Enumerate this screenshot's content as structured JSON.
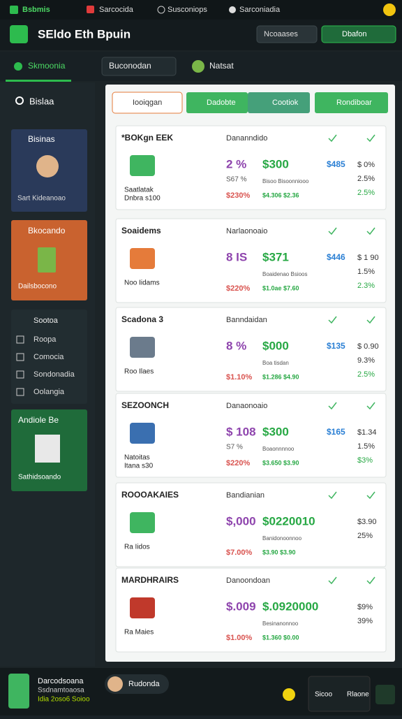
{
  "tabs": [
    "Bsbmis",
    "Sarcocida",
    "Susconiops",
    "Sarconiadia"
  ],
  "header": {
    "title": "SEldo Eth Bpuin",
    "button1": "Ncoaases",
    "button2": "Dbafon"
  },
  "nav": {
    "active": "Skmoonia",
    "dropdown": "Buconodan",
    "item": "Natsat"
  },
  "sidebar": {
    "search": "Bislaa",
    "card1": {
      "title": "Bisinas",
      "caption": "Sart Kideanoao"
    },
    "card2": {
      "title": "Bkocando",
      "caption": "Dailsbocono"
    },
    "menu_title": "Sootoa",
    "menu": [
      "Roopa",
      "Comocia",
      "Sondonadia",
      "Oolangia"
    ],
    "card3": {
      "title": "Andiole Be",
      "caption": "Sathidsoando"
    }
  },
  "toolbar": {
    "search": "Iooiqgan",
    "button1": "Dadobte",
    "button2": "Cootiok",
    "button3": "Rondiboar"
  },
  "cards": [
    {
      "title": "*BOKgn EEK",
      "header": "Dananndido",
      "caption": [
        "Saatlatak",
        "Dnbra s100"
      ],
      "a": "2 %",
      "b": "$300",
      "c": "S67 %",
      "d": "$230%",
      "e": "Bisoo Bisoonniooo",
      "f": "$4.306 $2.36",
      "g": "$485",
      "h": "$ 0%",
      "i": "2.5%",
      "j": "2.5%"
    },
    {
      "title": "Soaidems",
      "header": "Narlaonoaio",
      "caption": [
        "Noo Iidams"
      ],
      "a": "8 IS",
      "b": "$371",
      "d": "$220%",
      "e": "Boaidenao Bsioos",
      "f": "$1.0ae $7.60",
      "g": "$446",
      "h": "$ 1 90",
      "i": "1.5%",
      "j": "2.3%"
    },
    {
      "title": "Scadona 3",
      "header": "Banndaidan",
      "caption": [
        "Roo Ilaes"
      ],
      "a": "8 %",
      "b": "$000",
      "d": "$1.10%",
      "e": "Boa tisdan",
      "f": "$1.286 $4.90",
      "g": "$135",
      "h": "$ 0.90",
      "i": "9.3%",
      "j": "2.5%"
    },
    {
      "title": "SEZOONCH",
      "header": "Danaonoaio",
      "caption": [
        "Natoitas",
        "Itana s30"
      ],
      "a": "$ 108",
      "b": "$300",
      "c": "S7 %",
      "d": "$220%",
      "e": "Boaonnnnoo",
      "f": "$3.650 $3.90",
      "g": "$165",
      "h": "$1.34",
      "i": "1.5%",
      "j": "$3%"
    },
    {
      "title": "ROOOAKAIES",
      "header": "Bandianian",
      "caption": [
        "Ra Iidos"
      ],
      "a": "$,000",
      "b": "$0220010",
      "d": "$7.00%",
      "e": "Banidonoonnoo",
      "f": "$3.90 $3.90",
      "h": "$3.90",
      "i": "25%"
    },
    {
      "title": "MARDHRAIRS",
      "header": "Danoondoan",
      "caption": [
        "Ra Maies"
      ],
      "a": "$.009",
      "b": "$.0920000",
      "d": "$1.00%",
      "e": "Besinanonnoo",
      "f": "$1.360 $0.00",
      "h": "$9%",
      "i": "39%"
    }
  ],
  "footer": {
    "name": "Darcodsoana",
    "sub1": "Ssdnamtoaosa",
    "sub2": "Idia 2oso6 Soioo",
    "user": "Rudonda",
    "button1": "Sicoo",
    "button2": "Rlaone"
  }
}
